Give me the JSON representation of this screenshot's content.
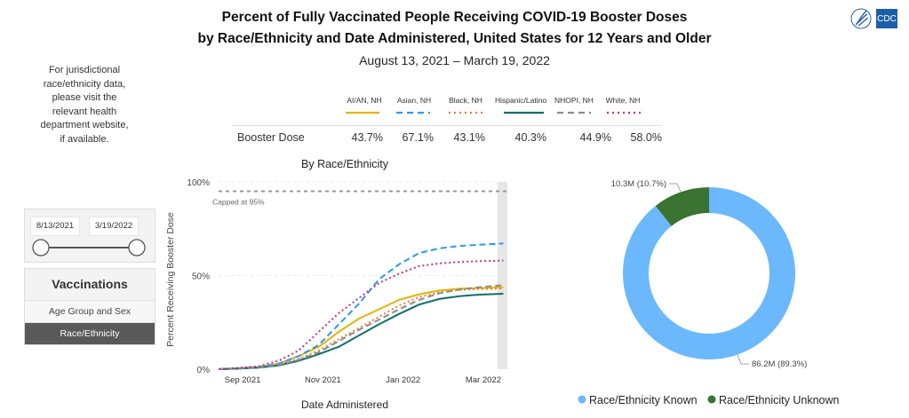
{
  "header": {
    "title_line1": "Percent of Fully Vaccinated People Receiving COVID-19 Booster Doses",
    "title_line2": "by Race/Ethnicity and Date Administered, United States for 12 Years and Older",
    "date_range": "August 13, 2021 – March 19, 2022",
    "logos": [
      "hhs-eagle-icon",
      "cdc-logo"
    ],
    "cdc_text": "CDC"
  },
  "sidebar": {
    "note_lines": [
      "For jurisdictional",
      "race/ethnicity data,",
      "please visit the",
      "relevant health",
      "department website,",
      "if available."
    ],
    "date_slicer": {
      "start": "8/13/2021",
      "end": "3/19/2022"
    },
    "nav": {
      "heading": "Vaccinations",
      "items": [
        {
          "label": "Age Group and Sex",
          "active": false
        },
        {
          "label": "Race/Ethnicity",
          "active": true
        }
      ]
    }
  },
  "summary_table": {
    "row_label": "Booster Dose",
    "groups": [
      {
        "name": "AI/AN, NH",
        "value": "43.7%",
        "color": "#E6B405",
        "dash": "solid"
      },
      {
        "name": "Asian, NH",
        "value": "67.1%",
        "color": "#2B9AF3",
        "dash": "dashed"
      },
      {
        "name": "Black, NH",
        "value": "43.1%",
        "color": "#F07B3F",
        "dash": "dotted"
      },
      {
        "name": "Hispanic/Latino",
        "value": "40.3%",
        "color": "#0E6F6A",
        "dash": "solid"
      },
      {
        "name": "NHOPI, NH",
        "value": "44.9%",
        "color": "#8C8C8C",
        "dash": "dashed"
      },
      {
        "name": "White, NH",
        "value": "58.0%",
        "color": "#B8348F",
        "dash": "dotted"
      }
    ]
  },
  "chart_data": [
    {
      "type": "line",
      "title": "By Race/Ethnicity",
      "xlabel": "Date Administered",
      "ylabel": "Percent Receiving Booster Dose",
      "ylim": [
        0,
        100
      ],
      "yticks": [
        "0%",
        "50%",
        "100%"
      ],
      "xticks": [
        "Sep 2021",
        "Nov 2021",
        "Jan 2022",
        "Mar 2022"
      ],
      "xtick_months": [
        0.6,
        2.6,
        4.6,
        6.6
      ],
      "x_range_months": [
        0,
        7.2
      ],
      "reference_line": {
        "value": 95,
        "label": "Capped at 95%"
      },
      "shaded_region_months": [
        6.95,
        7.2
      ],
      "grid": true,
      "x": [
        0,
        0.5,
        1,
        1.5,
        2,
        2.5,
        3,
        3.5,
        4,
        4.5,
        5,
        5.5,
        6,
        6.5,
        7.1
      ],
      "series": [
        {
          "name": "AI/AN, NH",
          "color": "#E6B405",
          "dash": "solid",
          "values": [
            0,
            0.5,
            1.2,
            3,
            7,
            12,
            20,
            27,
            32,
            37,
            40,
            42,
            43,
            43.3,
            43.7
          ]
        },
        {
          "name": "Asian, NH",
          "color": "#2B9AF3",
          "dash": "dashed",
          "values": [
            0,
            0.5,
            1.2,
            3,
            7,
            13,
            24,
            35,
            48,
            56,
            62,
            64.5,
            65.8,
            66.5,
            67.1
          ]
        },
        {
          "name": "Black, NH",
          "color": "#F07B3F",
          "dash": "dotted",
          "values": [
            0,
            0.4,
            1,
            2.5,
            5.5,
            10,
            16,
            22,
            28,
            34,
            38.5,
            41,
            42.3,
            42.8,
            43.1
          ]
        },
        {
          "name": "Hispanic/Latino",
          "color": "#0E6F6A",
          "dash": "solid",
          "values": [
            0,
            0.3,
            0.8,
            2,
            4.5,
            8,
            12,
            18,
            24,
            29.5,
            34.5,
            37.5,
            39,
            39.8,
            40.3
          ]
        },
        {
          "name": "NHOPI, NH",
          "color": "#8C8C8C",
          "dash": "dashed",
          "values": [
            0,
            0.4,
            1,
            2.3,
            5,
            9,
            15,
            21,
            26.5,
            32,
            37,
            40.5,
            42.5,
            43.8,
            44.9
          ]
        },
        {
          "name": "White, NH",
          "color": "#B8348F",
          "dash": "dotted",
          "values": [
            0,
            0.7,
            1.5,
            4.5,
            10,
            20,
            30,
            38,
            46,
            51,
            55,
            56.5,
            57.3,
            57.7,
            58.0
          ]
        }
      ]
    },
    {
      "type": "pie",
      "donut": true,
      "categories": [
        "Race/Ethnicity Known",
        "Race/Ethnicity Unknown"
      ],
      "values": [
        86.2,
        10.3
      ],
      "value_unit": "M",
      "percents": [
        89.3,
        10.7
      ],
      "labels": [
        "86.2M (89.3%)",
        "10.3M (10.7%)"
      ],
      "colors": [
        "#6CB8FC",
        "#3A7332"
      ],
      "legend": "bottom"
    }
  ]
}
